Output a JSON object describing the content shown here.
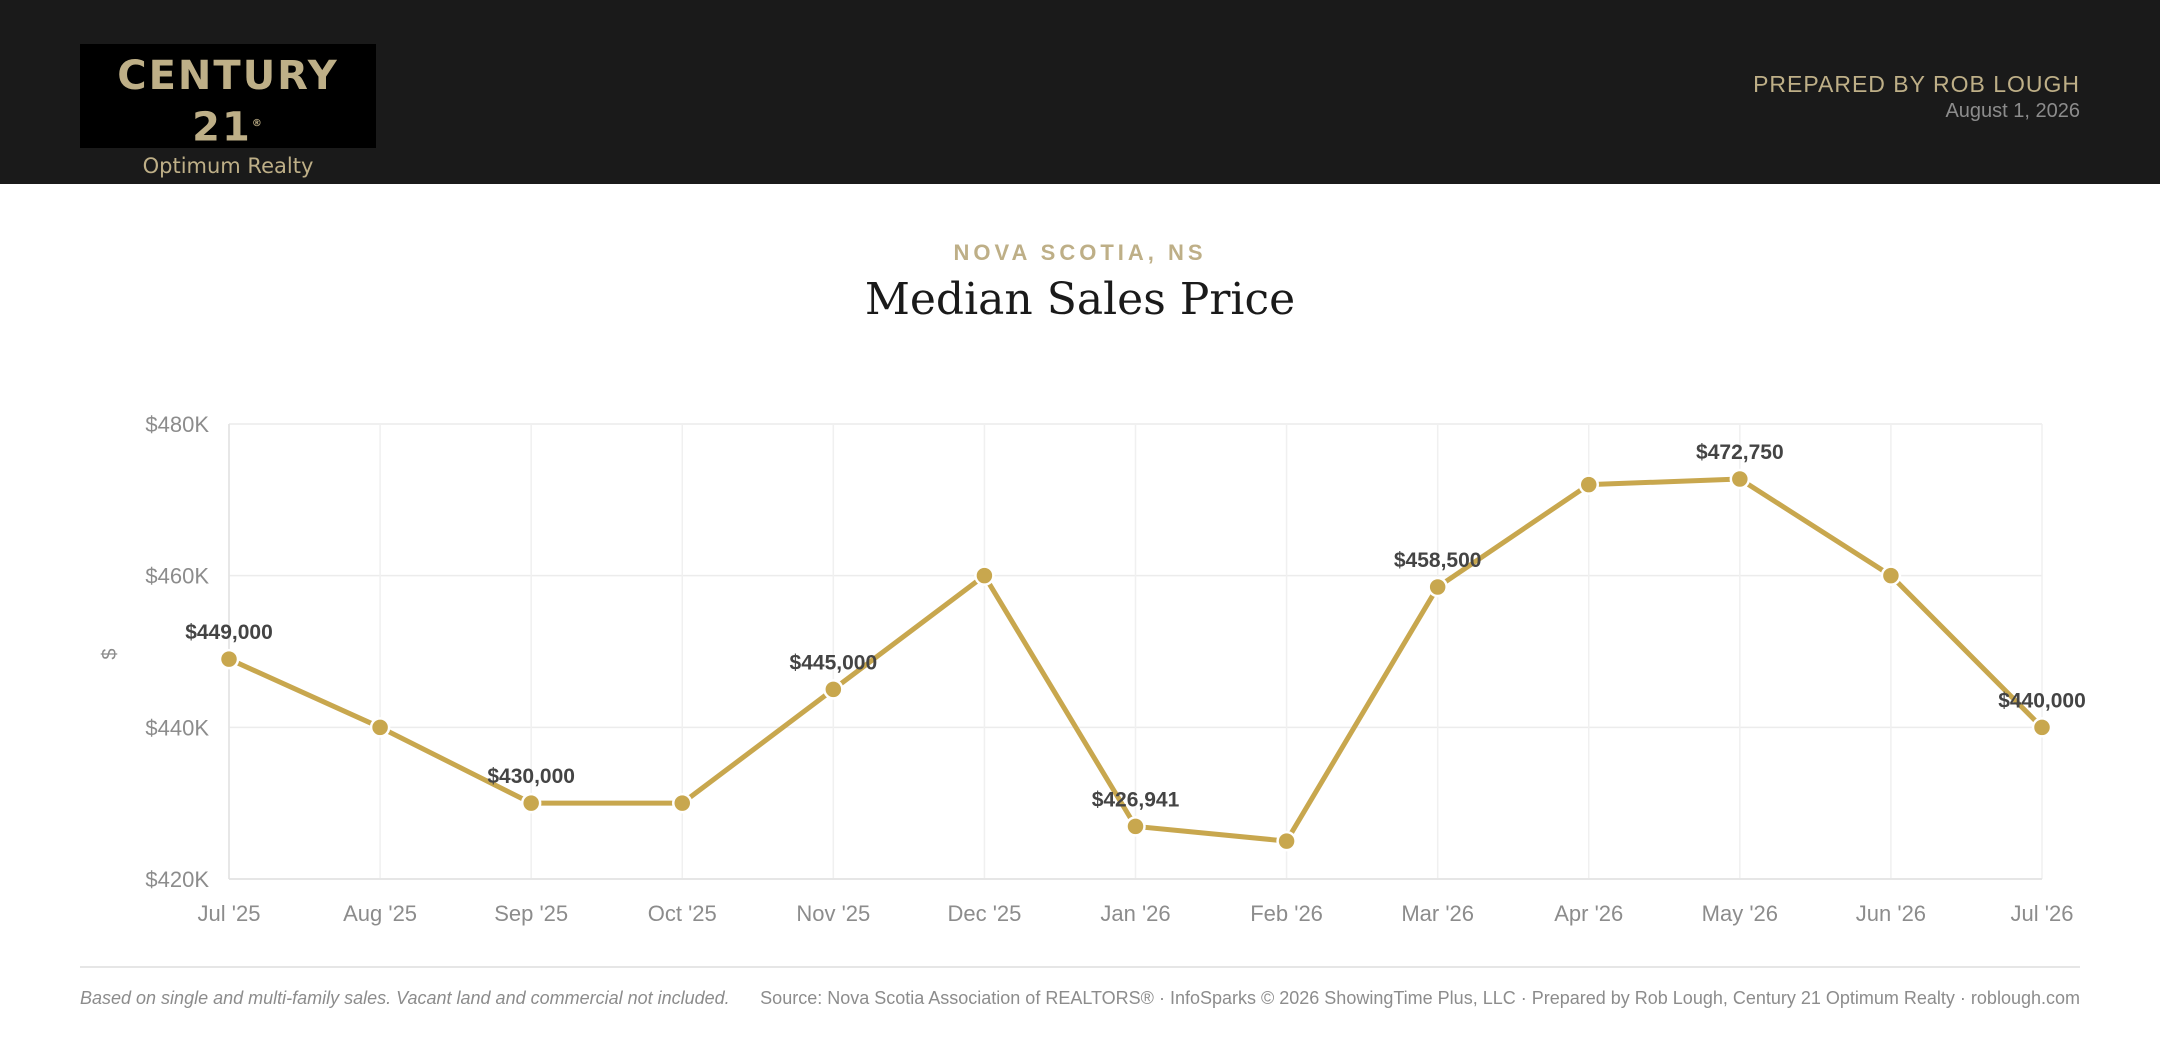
{
  "header": {
    "logo_brand": "CENTURY 21",
    "logo_reg": "®",
    "logo_sub": "Optimum Realty",
    "prepared_by": "PREPARED BY ROB LOUGH",
    "date": "August 1, 2026"
  },
  "region": "NOVA SCOTIA, NS",
  "footer": {
    "note": "Based on single and multi-family sales. Vacant land and commercial not included.",
    "source": "Source: Nova Scotia Association of REALTORS® · InfoSparks © 2026 ShowingTime Plus, LLC · Prepared by Rob Lough, Century 21 Optimum Realty · roblough.com"
  },
  "colors": {
    "accent": "#c8a74e",
    "brand_gold": "#beaf87",
    "header_bg": "#1a1a1a"
  },
  "chart_data": {
    "type": "line",
    "title": "Median Sales Price",
    "ylabel": "$",
    "xlabel": "",
    "categories": [
      "Jul '25",
      "Aug '25",
      "Sep '25",
      "Oct '25",
      "Nov '25",
      "Dec '25",
      "Jan '26",
      "Feb '26",
      "Mar '26",
      "Apr '26",
      "May '26",
      "Jun '26",
      "Jul '26"
    ],
    "values": [
      449000,
      440000,
      430000,
      430000,
      445000,
      460000,
      426941,
      425000,
      458500,
      472000,
      472750,
      460000,
      440000
    ],
    "data_labels": [
      "$449,000",
      "",
      "$430,000",
      "",
      "$445,000",
      "",
      "$426,941",
      "",
      "$458,500",
      "",
      "$472,750",
      "",
      "$440,000"
    ],
    "ylim": [
      420000,
      480000
    ],
    "yticks": [
      420000,
      440000,
      460000,
      480000
    ],
    "ytick_labels": [
      "$420K",
      "$440K",
      "$460K",
      "$480K"
    ],
    "grid": true,
    "legend": "none"
  }
}
